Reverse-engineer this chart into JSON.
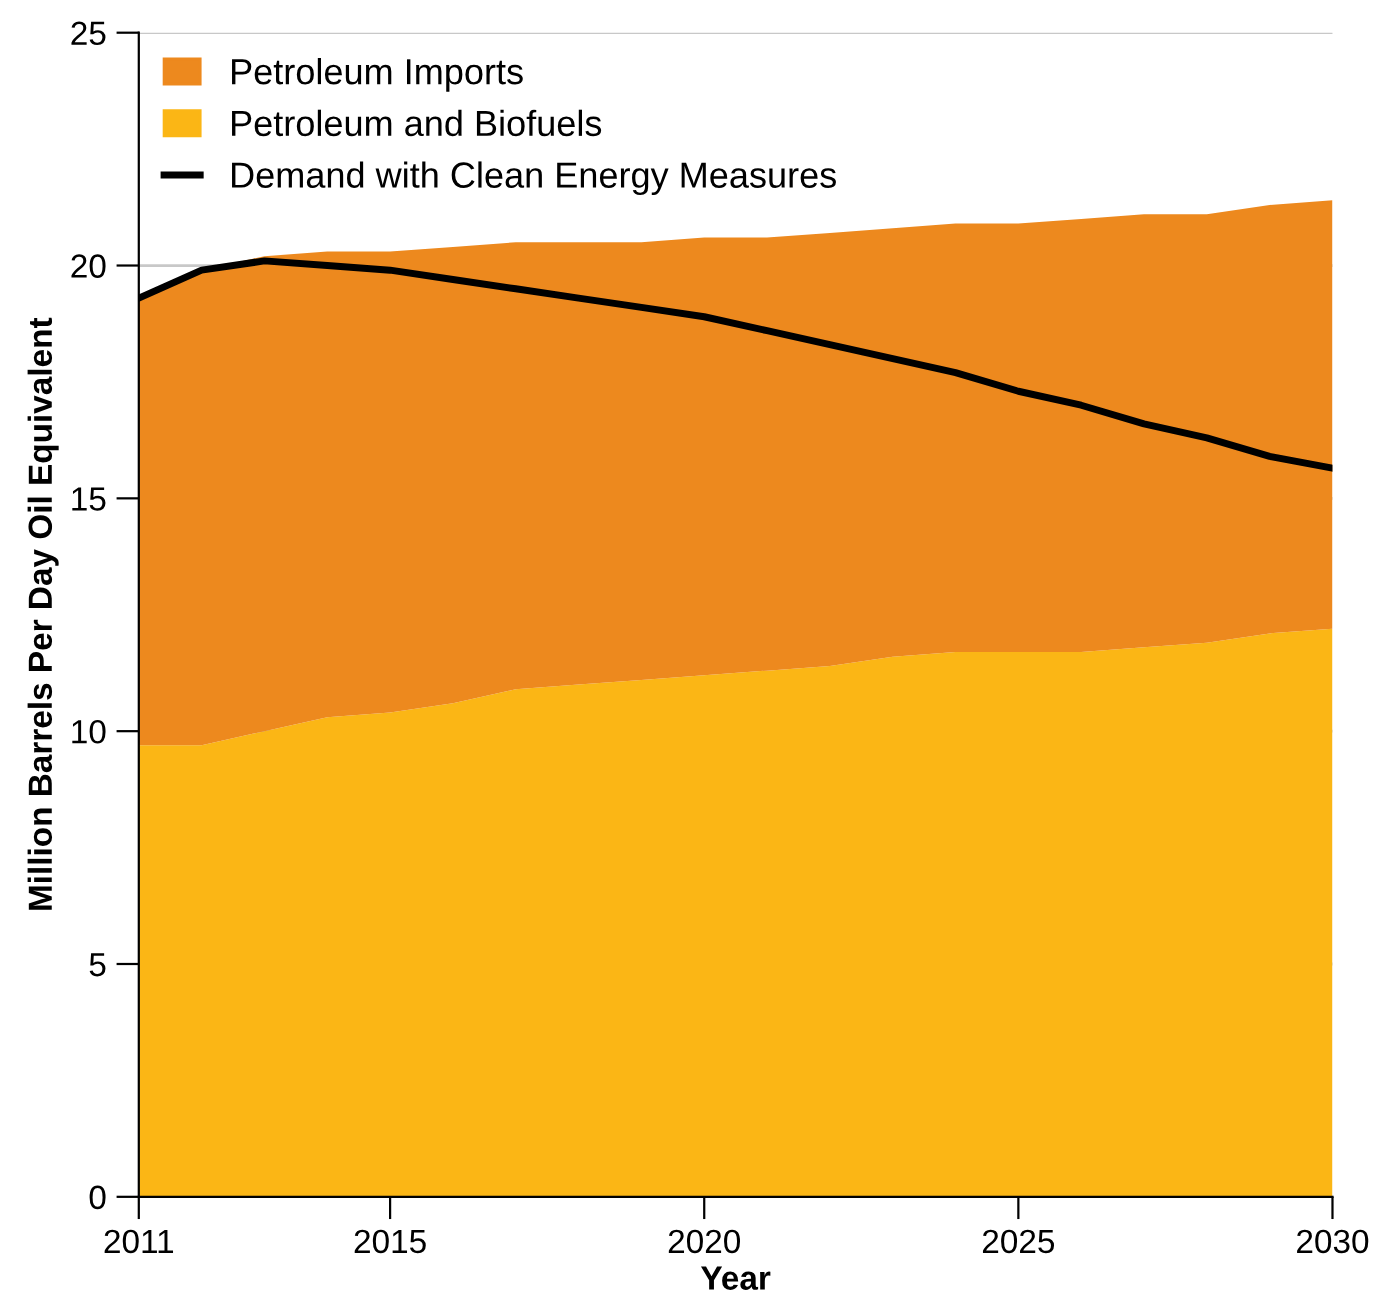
{
  "chart_data": {
    "type": "area",
    "stacked": true,
    "xlabel": "Year",
    "ylabel": "Million Barrels Per Day Oil Equivalent",
    "x": [
      2011,
      2012,
      2013,
      2014,
      2015,
      2016,
      2017,
      2018,
      2019,
      2020,
      2021,
      2022,
      2023,
      2024,
      2025,
      2026,
      2027,
      2028,
      2029,
      2030
    ],
    "series": [
      {
        "name": "Petroleum and Biofuels",
        "color": "#fbb615",
        "values": [
          9.7,
          9.7,
          10.0,
          10.3,
          10.4,
          10.6,
          10.9,
          11.0,
          11.1,
          11.2,
          11.3,
          11.4,
          11.6,
          11.7,
          11.7,
          11.7,
          11.8,
          11.9,
          12.1,
          12.2
        ]
      },
      {
        "name": "Petroleum Imports",
        "color": "#ed891e",
        "values": [
          9.6,
          10.2,
          10.2,
          10.0,
          9.9,
          9.8,
          9.6,
          9.5,
          9.4,
          9.4,
          9.3,
          9.3,
          9.2,
          9.2,
          9.2,
          9.3,
          9.3,
          9.2,
          9.2,
          9.2
        ]
      },
      {
        "name": "Demand with Clean Energy Measures",
        "type": "line",
        "color": "#000000",
        "values": [
          19.3,
          19.9,
          20.1,
          20.0,
          19.9,
          19.7,
          19.5,
          19.3,
          19.1,
          18.9,
          18.6,
          18.3,
          18.0,
          17.7,
          17.3,
          17.0,
          16.6,
          16.3,
          15.9,
          15.65
        ]
      }
    ],
    "xlim": [
      2011,
      2030
    ],
    "xticks": [
      2011,
      2015,
      2020,
      2025,
      2030
    ],
    "ylim": [
      0,
      25
    ],
    "yticks": [
      0,
      5,
      10,
      15,
      20,
      25
    ],
    "grid": "y",
    "legend": "top left",
    "line_style": "solid",
    "marker": "none"
  }
}
